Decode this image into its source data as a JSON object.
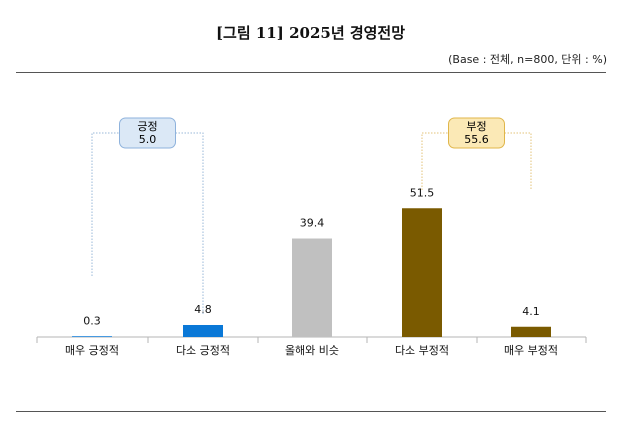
{
  "header": {
    "title": "[그림 11] 2025년 경영전망",
    "base_note": "(Base : 전체, n=800, 단위 : %)"
  },
  "chart_data": {
    "type": "bar",
    "title": "[그림 11] 2025년 경영전망",
    "categories": [
      "매우 긍정적",
      "다소 긍정적",
      "올해와 비슷",
      "다소 부정적",
      "매우 부정적"
    ],
    "values": [
      0.3,
      4.8,
      39.4,
      51.5,
      4.1
    ],
    "value_labels": [
      "0.3",
      "4.8",
      "39.4",
      "51.5",
      "4.1"
    ],
    "colors": [
      "#0a78d7",
      "#0a78d7",
      "#c0c0c0",
      "#7a5a00",
      "#7a5a00"
    ],
    "ylim": [
      0,
      60
    ],
    "grid": false,
    "groups": [
      {
        "label": "긍정",
        "value": "5.0",
        "from": 0,
        "to": 1,
        "fill": "#dbe8f6",
        "stroke": "#8eb2dc",
        "line": "#9ab8d8"
      },
      {
        "label": "부정",
        "value": "55.6",
        "from": 3,
        "to": 4,
        "fill": "#fbe9b6",
        "stroke": "#e0b64a",
        "line": "#e3c37a"
      }
    ]
  }
}
